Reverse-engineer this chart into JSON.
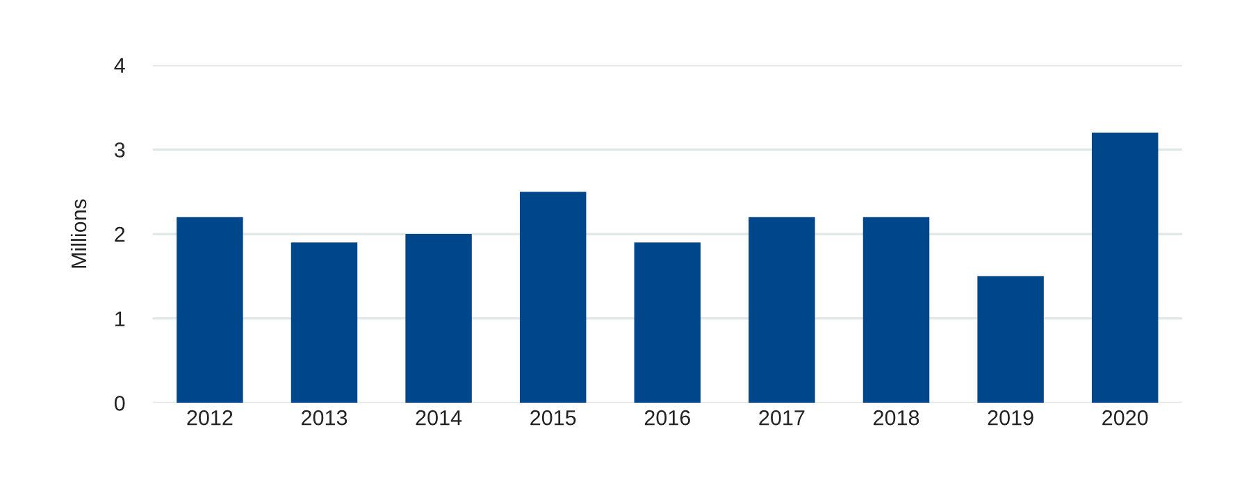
{
  "chart_data": {
    "type": "bar",
    "ylabel": "Millions",
    "categories": [
      "2012",
      "2013",
      "2014",
      "2015",
      "2016",
      "2017",
      "2018",
      "2019",
      "2020"
    ],
    "values": [
      2.2,
      1.9,
      2.0,
      2.5,
      1.9,
      2.2,
      2.2,
      1.5,
      3.2
    ],
    "color": "#00468b",
    "ylim": [
      0,
      4
    ],
    "yticks": [
      0,
      1,
      2,
      3,
      4
    ],
    "grid": "y"
  }
}
